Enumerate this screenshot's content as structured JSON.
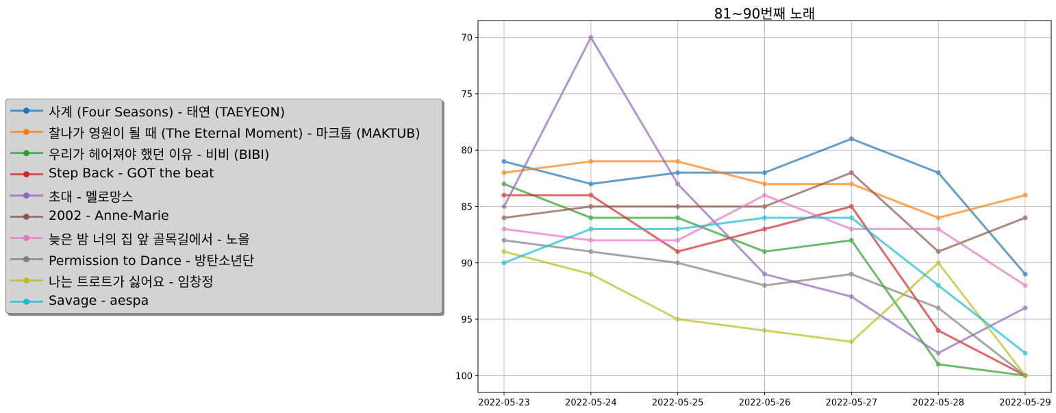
{
  "chart_data": {
    "type": "line",
    "title": "81~90번째 노래",
    "x": [
      "2022-05-23",
      "2022-05-24",
      "2022-05-25",
      "2022-05-26",
      "2022-05-27",
      "2022-05-28",
      "2022-05-29"
    ],
    "ylim": [
      101.5,
      68.5
    ],
    "y_inverted": true,
    "yticks": [
      70,
      75,
      80,
      85,
      90,
      95,
      100
    ],
    "grid": true,
    "legend_position": "left, outside plot",
    "series": [
      {
        "name": "사계 (Four Seasons) - 태연 (TAEYEON)",
        "color": "#1f77b4",
        "values": [
          81,
          83,
          82,
          82,
          79,
          82,
          91
        ]
      },
      {
        "name": "찰나가 영원이 될 때 (The Eternal Moment) - 마크툽 (MAKTUB)",
        "color": "#ff7f0e",
        "values": [
          82,
          81,
          81,
          83,
          83,
          86,
          84
        ]
      },
      {
        "name": "우리가 헤어져야 했던 이유 - 비비 (BIBI)",
        "color": "#2ca02c",
        "values": [
          83,
          86,
          86,
          89,
          88,
          99,
          100
        ]
      },
      {
        "name": "Step Back - GOT the beat",
        "color": "#d62728",
        "values": [
          84,
          84,
          89,
          87,
          85,
          96,
          100
        ]
      },
      {
        "name": "초대 - 멜로망스",
        "color": "#9467bd",
        "values": [
          85,
          70,
          83,
          91,
          93,
          98,
          94
        ]
      },
      {
        "name": "2002 - Anne-Marie",
        "color": "#8c564b",
        "values": [
          86,
          85,
          85,
          85,
          82,
          89,
          86
        ]
      },
      {
        "name": "늦은 밤 너의 집 앞 골목길에서 - 노을",
        "color": "#e377c2",
        "values": [
          87,
          88,
          88,
          84,
          87,
          87,
          92
        ]
      },
      {
        "name": "Permission to Dance - 방탄소년단",
        "color": "#7f7f7f",
        "values": [
          88,
          89,
          90,
          92,
          91,
          94,
          100
        ]
      },
      {
        "name": "나는 트로트가 싫어요 - 임창정",
        "color": "#bcbd22",
        "values": [
          89,
          91,
          95,
          96,
          97,
          90,
          100
        ]
      },
      {
        "name": "Savage - aespa",
        "color": "#17becf",
        "values": [
          90,
          87,
          87,
          86,
          86,
          92,
          98
        ]
      }
    ]
  }
}
